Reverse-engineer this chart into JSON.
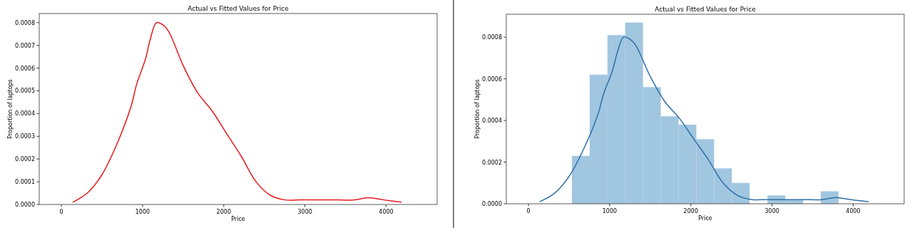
{
  "chart_data": [
    {
      "type": "line",
      "title": "Actual vs Fitted Values for Price",
      "xlabel": "Price",
      "ylabel": "Proportion of laptops",
      "xlim": [
        -273,
        4628
      ],
      "ylim": [
        0,
        0.00084
      ],
      "xticks": [
        0,
        1000,
        2000,
        3000,
        4000
      ],
      "yticks": [
        {
          "value": 0,
          "label": "0.0000"
        },
        {
          "value": 0.0001,
          "label": "0.0001"
        },
        {
          "value": 0.0002,
          "label": "0.0002"
        },
        {
          "value": 0.0003,
          "label": "0.0003"
        },
        {
          "value": 0.0004,
          "label": "0.0004"
        },
        {
          "value": 0.0005,
          "label": "0.0005"
        },
        {
          "value": 0.0006,
          "label": "0.0006"
        },
        {
          "value": 0.0007,
          "label": "0.0007"
        },
        {
          "value": 0.0008,
          "label": "0.0008"
        }
      ],
      "series": [
        {
          "color": "#e41a1c",
          "x": [
            140,
            319,
            498,
            677,
            857,
            928,
            1036,
            1090,
            1172,
            1251,
            1323,
            1502,
            1681,
            1860,
            2039,
            2219,
            2398,
            2577,
            2756,
            2935,
            3186,
            3401,
            3616,
            3778,
            3975,
            4190
          ],
          "values": [
            1e-05,
            5e-05,
            0.00013,
            0.00026,
            0.00043,
            0.00053,
            0.00064,
            0.00072,
            0.0008,
            0.00079,
            0.00076,
            0.00061,
            0.00049,
            0.00041,
            0.00031,
            0.00021,
            0.0001,
            4e-05,
            2e-05,
            2e-05,
            2e-05,
            2e-05,
            2e-05,
            3e-05,
            2e-05,
            1e-05
          ]
        }
      ]
    },
    {
      "type": "histogram",
      "title": "Actual vs Fitted Values for Price",
      "xlabel": "Price",
      "ylabel": "Proportion of laptops",
      "xlim": [
        -273,
        4628
      ],
      "ylim": [
        0,
        0.00091
      ],
      "xticks": [
        0,
        1000,
        2000,
        3000,
        4000
      ],
      "yticks": [
        {
          "value": 0,
          "label": "0.0000"
        },
        {
          "value": 0.0002,
          "label": "0.0002"
        },
        {
          "value": 0.0004,
          "label": "0.0004"
        },
        {
          "value": 0.0006,
          "label": "0.0006"
        },
        {
          "value": 0.0008,
          "label": "0.0008"
        }
      ],
      "series": [
        {
          "color": "#a1c6e0",
          "bins": [
            535,
            754,
            973,
            1192,
            1411,
            1630,
            1849,
            2068,
            2287,
            2506,
            2725,
            2944,
            3163,
            3382,
            3601,
            3820
          ],
          "values": [
            0.00023,
            0.00062,
            0.00081,
            0.00087,
            0.00056,
            0.00042,
            0.00038,
            0.00031,
            0.00017,
            0.0001,
            0,
            4e-05,
            2e-05,
            0,
            6e-05
          ]
        },
        {
          "type": "line",
          "color": "#2f6fa8",
          "x": [
            140,
            319,
            498,
            677,
            857,
            928,
            1036,
            1090,
            1172,
            1251,
            1323,
            1502,
            1681,
            1860,
            2039,
            2219,
            2398,
            2577,
            2756,
            2935,
            3186,
            3401,
            3616,
            3778,
            3975,
            4190
          ],
          "values": [
            1e-05,
            5e-05,
            0.00013,
            0.00026,
            0.00043,
            0.00053,
            0.00064,
            0.00072,
            0.0008,
            0.00079,
            0.00076,
            0.00061,
            0.00049,
            0.00041,
            0.00031,
            0.00021,
            0.0001,
            4e-05,
            2e-05,
            2e-05,
            2e-05,
            2e-05,
            2e-05,
            3e-05,
            2e-05,
            1e-05
          ]
        }
      ]
    }
  ]
}
